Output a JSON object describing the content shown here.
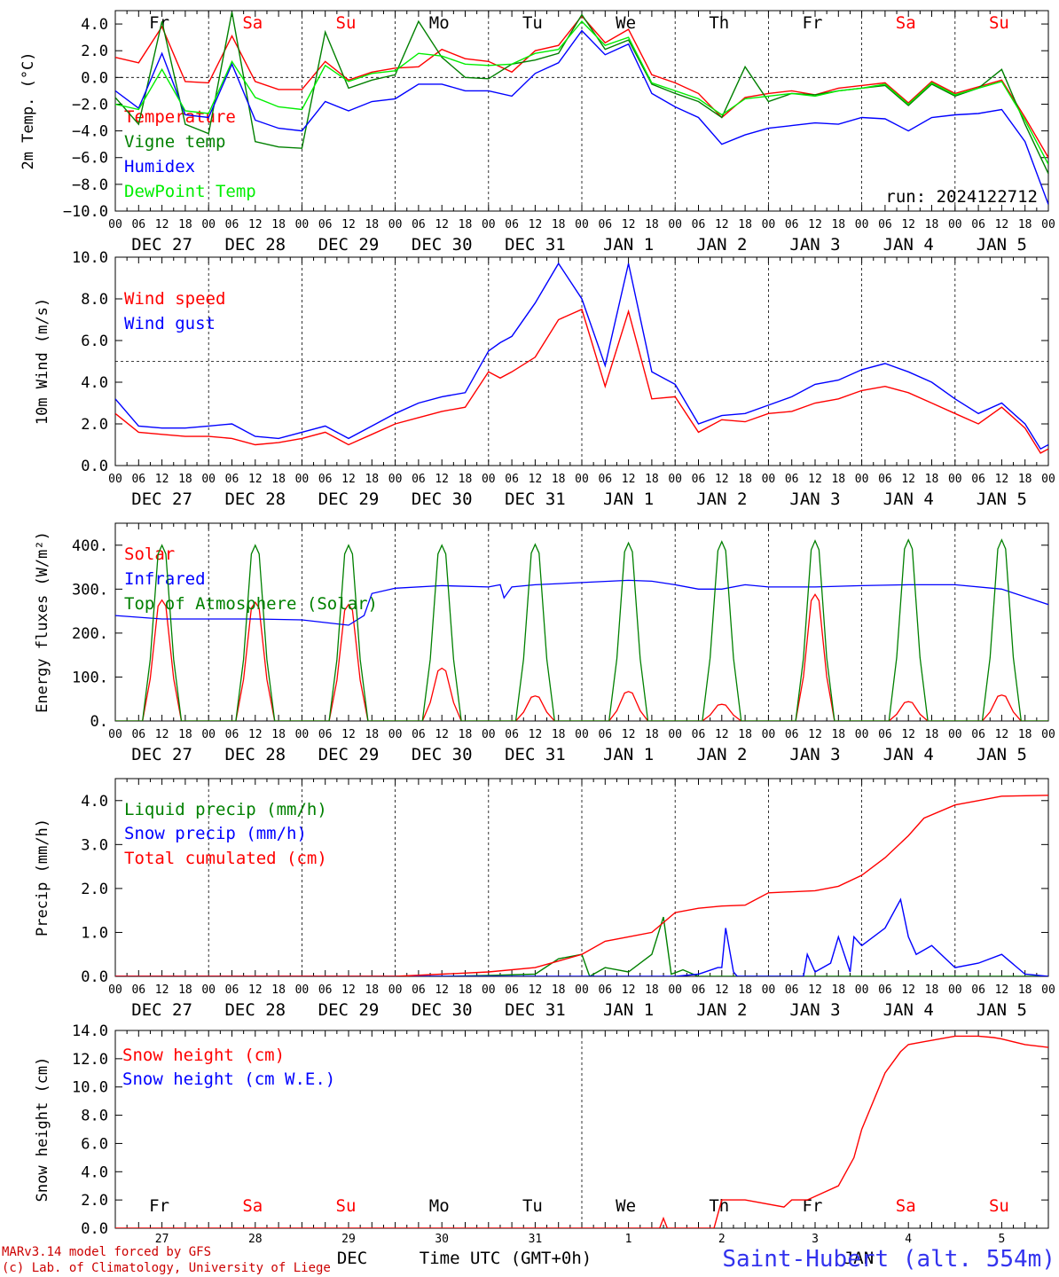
{
  "meta": {
    "run_label": "run: 2024122712",
    "model_credit": "MARv3.14 model forced by GFS",
    "lab_credit": "(c) Lab. of Climatology, University of Liege",
    "station": "Saint-Hubert (alt. 554m)",
    "xlabel": "Time UTC (GMT+0h)",
    "month_label": "DEC",
    "overlap_label": "JAN",
    "hour_ticks": [
      "00",
      "06",
      "12",
      "18"
    ],
    "date_labels": [
      "DEC 27",
      "DEC 28",
      "DEC 29",
      "DEC 30",
      "DEC 31",
      "JAN  1",
      "JAN  2",
      "JAN  3",
      "JAN  4",
      "JAN  5"
    ],
    "weekdays": [
      "Fr",
      "Sa",
      "Su",
      "Mo",
      "Tu",
      "We",
      "Th",
      "Fr",
      "Sa",
      "Su"
    ],
    "day_numbers": [
      "27",
      "28",
      "29",
      "30",
      "31",
      "1",
      "2",
      "3",
      "4",
      "5"
    ],
    "colors": {
      "red": "#ff0000",
      "green": "#008000",
      "blue": "#0000ff",
      "lightgreen": "#00ee00",
      "weekend": "#ff0000",
      "weekday": "#000000",
      "station": "#3333ee",
      "credit": "#cc0000"
    }
  },
  "chart_data": [
    {
      "type": "line",
      "ylabel": "2m Temp. (°C)",
      "ylim": [
        -10,
        5
      ],
      "yticks": [
        "4.0",
        "2.0",
        "0.0",
        "−2.0",
        "−4.0",
        "−6.0",
        "−8.0",
        "−10.0"
      ],
      "ytick_values": [
        4,
        2,
        0,
        -2,
        -4,
        -6,
        -8,
        -10
      ],
      "reference_line": 0,
      "x_unit": "hours since DEC 27 00 UTC",
      "series": [
        {
          "name": "Temperature",
          "color": "#ff0000",
          "x": [
            0,
            6,
            12,
            18,
            24,
            30,
            36,
            42,
            48,
            54,
            60,
            66,
            72,
            78,
            84,
            90,
            96,
            102,
            108,
            114,
            120,
            126,
            132,
            138,
            144,
            150,
            156,
            162,
            168,
            174,
            180,
            186,
            192,
            198,
            204,
            210,
            216,
            222,
            228,
            234,
            240
          ],
          "values": [
            1.5,
            1.1,
            3.8,
            -0.3,
            -0.4,
            3.1,
            -0.3,
            -0.9,
            -0.9,
            1.2,
            -0.2,
            0.4,
            0.7,
            0.8,
            2.1,
            1.4,
            1.2,
            0.4,
            2.0,
            2.4,
            4.6,
            2.6,
            3.6,
            0.2,
            -0.4,
            -1.2,
            -3.0,
            -1.5,
            -1.2,
            -1.0,
            -1.3,
            -0.8,
            -0.6,
            -0.4,
            -1.9,
            -0.3,
            -1.2,
            -0.7,
            -0.2,
            -3.0,
            -6.0
          ]
        },
        {
          "name": "Vigne temp",
          "color": "#008000",
          "x": [
            0,
            6,
            12,
            18,
            24,
            30,
            36,
            42,
            48,
            54,
            60,
            66,
            72,
            78,
            84,
            90,
            96,
            102,
            108,
            114,
            120,
            126,
            132,
            138,
            144,
            150,
            156,
            162,
            168,
            174,
            180,
            186,
            192,
            198,
            204,
            210,
            216,
            222,
            228,
            234,
            240
          ],
          "values": [
            -1.5,
            -3.5,
            4.2,
            -3.5,
            -4.2,
            4.9,
            -4.8,
            -5.2,
            -5.3,
            3.4,
            -0.8,
            -0.2,
            0.2,
            4.2,
            1.5,
            0.0,
            -0.1,
            1.0,
            1.3,
            1.8,
            4.7,
            2.1,
            2.8,
            -0.5,
            -1.2,
            -1.8,
            -3.0,
            0.8,
            -1.8,
            -1.2,
            -1.3,
            -1.0,
            -0.8,
            -0.6,
            -2.1,
            -0.5,
            -1.4,
            -0.8,
            0.6,
            -3.5,
            -7.2
          ]
        },
        {
          "name": "Humidex",
          "color": "#0000ff",
          "x": [
            0,
            6,
            12,
            18,
            24,
            30,
            36,
            42,
            48,
            54,
            60,
            66,
            72,
            78,
            84,
            90,
            96,
            102,
            108,
            114,
            120,
            126,
            132,
            138,
            144,
            150,
            156,
            162,
            168,
            174,
            180,
            186,
            192,
            198,
            204,
            210,
            216,
            222,
            228,
            234,
            240
          ],
          "values": [
            -1.0,
            -2.3,
            1.8,
            -2.8,
            -3.0,
            1.0,
            -3.2,
            -3.8,
            -4.0,
            -1.8,
            -2.5,
            -1.8,
            -1.6,
            -0.5,
            -0.5,
            -1.0,
            -1.0,
            -1.4,
            0.3,
            1.1,
            3.5,
            1.7,
            2.5,
            -1.2,
            -2.2,
            -3.0,
            -5.0,
            -4.3,
            -3.8,
            -3.6,
            -3.4,
            -3.5,
            -3.0,
            -3.1,
            -4.0,
            -3.0,
            -2.8,
            -2.7,
            -2.4,
            -4.8,
            -9.5
          ]
        },
        {
          "name": "DewPoint Temp",
          "color": "#00ee00",
          "x": [
            0,
            6,
            12,
            18,
            24,
            30,
            36,
            42,
            48,
            54,
            60,
            66,
            72,
            78,
            84,
            90,
            96,
            102,
            108,
            114,
            120,
            126,
            132,
            138,
            144,
            150,
            156,
            162,
            168,
            174,
            180,
            186,
            192,
            198,
            204,
            210,
            216,
            222,
            228,
            234,
            240
          ],
          "values": [
            -2.0,
            -2.4,
            0.6,
            -2.5,
            -2.7,
            1.2,
            -1.5,
            -2.2,
            -2.4,
            0.9,
            -0.3,
            0.3,
            0.5,
            1.8,
            1.6,
            1.0,
            0.9,
            1.0,
            1.8,
            2.1,
            4.2,
            2.4,
            3.0,
            -0.4,
            -1.0,
            -1.6,
            -2.8,
            -1.6,
            -1.4,
            -1.2,
            -1.4,
            -1.0,
            -0.8,
            -0.5,
            -2.0,
            -0.4,
            -1.3,
            -0.8,
            -0.3,
            -3.2,
            -6.5
          ]
        }
      ]
    },
    {
      "type": "line",
      "ylabel": "10m Wind (m/s)",
      "ylim": [
        0,
        10
      ],
      "yticks": [
        "10.0",
        "8.0",
        "6.0",
        "4.0",
        "2.0",
        "0.0"
      ],
      "ytick_values": [
        10,
        8,
        6,
        4,
        2,
        0
      ],
      "reference_line": 5,
      "x_unit": "hours since DEC 27 00 UTC",
      "series": [
        {
          "name": "Wind speed",
          "color": "#ff0000",
          "x": [
            0,
            6,
            12,
            18,
            24,
            30,
            36,
            42,
            48,
            54,
            60,
            66,
            72,
            78,
            84,
            90,
            96,
            99,
            102,
            108,
            114,
            120,
            126,
            132,
            138,
            144,
            150,
            156,
            162,
            168,
            174,
            180,
            186,
            192,
            198,
            204,
            210,
            216,
            222,
            228,
            234,
            238,
            240
          ],
          "values": [
            2.5,
            1.6,
            1.5,
            1.4,
            1.4,
            1.3,
            1.0,
            1.1,
            1.3,
            1.6,
            1.0,
            1.5,
            2.0,
            2.3,
            2.6,
            2.8,
            4.5,
            4.2,
            4.5,
            5.2,
            7.0,
            7.5,
            3.8,
            7.4,
            3.2,
            3.3,
            1.6,
            2.2,
            2.1,
            2.5,
            2.6,
            3.0,
            3.2,
            3.6,
            3.8,
            3.5,
            3.0,
            2.5,
            2.0,
            2.8,
            1.8,
            0.6,
            0.8
          ]
        },
        {
          "name": "Wind gust",
          "color": "#0000ff",
          "x": [
            0,
            6,
            12,
            18,
            24,
            30,
            36,
            42,
            48,
            54,
            60,
            66,
            72,
            78,
            84,
            90,
            96,
            99,
            102,
            108,
            114,
            120,
            126,
            132,
            138,
            144,
            150,
            156,
            162,
            168,
            174,
            180,
            186,
            192,
            198,
            204,
            210,
            216,
            222,
            228,
            234,
            238,
            240
          ],
          "values": [
            3.2,
            1.9,
            1.8,
            1.8,
            1.9,
            2.0,
            1.4,
            1.3,
            1.6,
            1.9,
            1.3,
            1.9,
            2.5,
            3.0,
            3.3,
            3.5,
            5.5,
            5.9,
            6.2,
            7.8,
            9.7,
            8.0,
            4.8,
            9.7,
            4.5,
            3.9,
            2.0,
            2.4,
            2.5,
            2.9,
            3.3,
            3.9,
            4.1,
            4.6,
            4.9,
            4.5,
            4.0,
            3.2,
            2.5,
            3.0,
            2.0,
            0.8,
            1.0
          ]
        }
      ]
    },
    {
      "type": "line",
      "ylabel": "Energy fluxes (W/m²)",
      "ylim": [
        0,
        450
      ],
      "yticks": [
        "400.",
        "300.",
        "200.",
        "100.",
        "0."
      ],
      "ytick_values": [
        400,
        300,
        200,
        100,
        0
      ],
      "x_unit": "hours since DEC 27 00 UTC",
      "daily_peak_hour": 12,
      "series": [
        {
          "name": "Solar",
          "color": "#ff0000",
          "daily_peaks": [
            275,
            270,
            265,
            120,
            57,
            67,
            38,
            288,
            44,
            59
          ]
        },
        {
          "name": "Infrared",
          "color": "#0000ff",
          "x": [
            0,
            12,
            24,
            36,
            48,
            60,
            64,
            66,
            72,
            84,
            96,
            99,
            100,
            102,
            108,
            120,
            132,
            138,
            144,
            150,
            156,
            162,
            168,
            180,
            192,
            204,
            216,
            228,
            240
          ],
          "values": [
            240,
            232,
            232,
            232,
            230,
            218,
            240,
            290,
            302,
            308,
            305,
            310,
            280,
            305,
            310,
            315,
            320,
            318,
            310,
            300,
            300,
            310,
            305,
            305,
            308,
            310,
            310,
            300,
            265
          ]
        },
        {
          "name": "Top of Atmosphere (Solar)",
          "color": "#008000",
          "daily_peaks": [
            400,
            400,
            400,
            400,
            402,
            405,
            408,
            410,
            412,
            412
          ]
        }
      ]
    },
    {
      "type": "line",
      "ylabel": "Precip (mm/h)",
      "ylim": [
        0,
        4.5
      ],
      "yticks": [
        "4.0",
        "3.0",
        "2.0",
        "1.0",
        "0.0"
      ],
      "ytick_values": [
        4,
        3,
        2,
        1,
        0
      ],
      "x_unit": "hours since DEC 27 00 UTC",
      "series": [
        {
          "name": "Liquid precip (mm/h)",
          "color": "#008000",
          "x": [
            0,
            84,
            96,
            108,
            114,
            120,
            122,
            126,
            132,
            138,
            141,
            143,
            146,
            150,
            156,
            168,
            240
          ],
          "values": [
            0,
            0,
            0.02,
            0.05,
            0.4,
            0.5,
            0.0,
            0.2,
            0.1,
            0.5,
            1.35,
            0.05,
            0.15,
            0.0,
            0,
            0,
            0
          ]
        },
        {
          "name": "Snow precip (mm/h)",
          "color": "#0000ff",
          "x": [
            0,
            144,
            150,
            155,
            156,
            157,
            159,
            160,
            162,
            168,
            177,
            178,
            180,
            184,
            186,
            189,
            190,
            192,
            198,
            202,
            204,
            206,
            210,
            216,
            222,
            228,
            234,
            240
          ],
          "values": [
            0,
            0,
            0.05,
            0.2,
            0.2,
            1.1,
            0.1,
            0.0,
            0.0,
            0.0,
            0.0,
            0.5,
            0.1,
            0.3,
            0.9,
            0.1,
            0.9,
            0.7,
            1.1,
            1.75,
            0.9,
            0.5,
            0.7,
            0.2,
            0.3,
            0.5,
            0.05,
            0
          ]
        },
        {
          "name": "Total cumulated (cm)",
          "color": "#ff0000",
          "x": [
            0,
            72,
            84,
            96,
            108,
            114,
            120,
            126,
            132,
            138,
            144,
            150,
            156,
            162,
            168,
            180,
            186,
            192,
            198,
            204,
            208,
            216,
            222,
            228,
            240
          ],
          "values": [
            0,
            0.0,
            0.05,
            0.1,
            0.2,
            0.35,
            0.5,
            0.8,
            0.9,
            1.0,
            1.45,
            1.55,
            1.6,
            1.62,
            1.9,
            1.95,
            2.05,
            2.3,
            2.7,
            3.2,
            3.6,
            3.9,
            4.0,
            4.1,
            4.12
          ]
        }
      ]
    },
    {
      "type": "line",
      "ylabel": "Snow height (cm)",
      "ylim": [
        0,
        14
      ],
      "yticks": [
        "14.0",
        "12.0",
        "10.0",
        "8.0",
        "6.0",
        "4.0",
        "2.0",
        "0.0"
      ],
      "ytick_values": [
        14,
        12,
        10,
        8,
        6,
        4,
        2,
        0
      ],
      "x_unit": "hours since DEC 27 00 UTC",
      "series": [
        {
          "name": "Snow height (cm)",
          "color": "#ff0000",
          "x": [
            0,
            140,
            141,
            142,
            150,
            154,
            156,
            162,
            172,
            174,
            178,
            186,
            190,
            192,
            198,
            202,
            204,
            208,
            216,
            222,
            226,
            228,
            234,
            240
          ],
          "values": [
            0,
            0,
            0.7,
            0,
            0,
            0,
            2.0,
            2.0,
            1.5,
            2.0,
            2.0,
            3.0,
            5.0,
            7.0,
            11.0,
            12.5,
            13.0,
            13.2,
            13.6,
            13.6,
            13.5,
            13.4,
            13.0,
            12.8
          ]
        },
        {
          "name": "Snow height (cm W.E.)",
          "color": "#0000ff",
          "x": [],
          "values": []
        }
      ]
    }
  ]
}
